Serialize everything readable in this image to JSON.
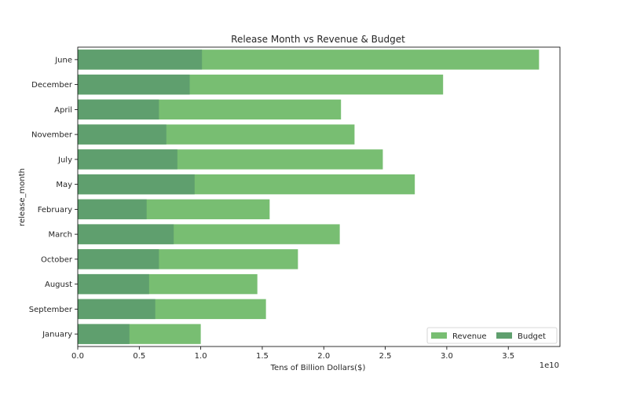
{
  "chart_data": {
    "type": "bar",
    "orientation": "horizontal",
    "title": "Release Month vs Revenue & Budget",
    "xlabel": "Tens of Billion Dollars($)",
    "ylabel": "release_month",
    "x_offset_text": "1e10",
    "xlim": [
      0,
      3.92
    ],
    "x_ticks": [
      "0.0",
      "0.5",
      "1.0",
      "1.5",
      "2.0",
      "2.5",
      "3.0",
      "3.5"
    ],
    "x_tick_values": [
      0,
      0.5,
      1.0,
      1.5,
      2.0,
      2.5,
      3.0,
      3.5
    ],
    "categories": [
      "June",
      "December",
      "April",
      "November",
      "July",
      "May",
      "February",
      "March",
      "October",
      "August",
      "September",
      "January"
    ],
    "series": [
      {
        "name": "Revenue",
        "color": "#78be72",
        "values": [
          3.75,
          2.97,
          2.14,
          2.25,
          2.48,
          2.74,
          1.56,
          2.13,
          1.79,
          1.46,
          1.53,
          1.0
        ]
      },
      {
        "name": "Budget",
        "color": "#5f9f6e",
        "values": [
          1.01,
          0.91,
          0.66,
          0.72,
          0.81,
          0.95,
          0.56,
          0.78,
          0.66,
          0.58,
          0.63,
          0.42
        ]
      }
    ],
    "legend_position": "lower-right",
    "grid": false
  }
}
